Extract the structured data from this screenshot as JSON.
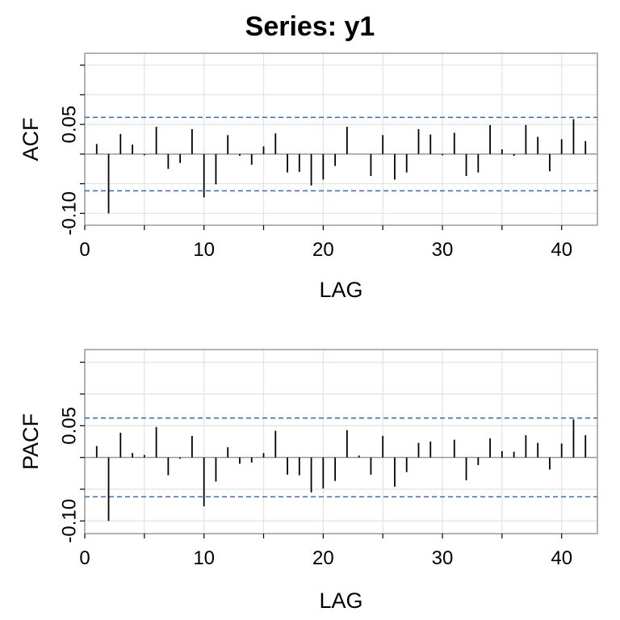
{
  "title": "Series:  y1",
  "chart_data": [
    {
      "type": "bar",
      "xlabel": "LAG",
      "ylabel": "ACF",
      "xlim": [
        0,
        43
      ],
      "ylim": [
        -0.12,
        0.17
      ],
      "x_ticks": [
        0,
        10,
        20,
        30,
        40
      ],
      "x_tick_labels": [
        "0",
        "10",
        "20",
        "30",
        "40"
      ],
      "y_ticks": [
        -0.1,
        0.05
      ],
      "y_tick_labels": [
        "-0.10",
        "0.05"
      ],
      "y_minor_ticks": [
        -0.1,
        -0.05,
        0,
        0.05,
        0.1,
        0.15
      ],
      "confidence_bounds": [
        0.062,
        -0.062
      ],
      "grid": true,
      "lags": [
        1,
        2,
        3,
        4,
        5,
        6,
        7,
        8,
        9,
        10,
        11,
        12,
        13,
        14,
        15,
        16,
        17,
        18,
        19,
        20,
        21,
        22,
        23,
        24,
        25,
        26,
        27,
        28,
        29,
        30,
        31,
        32,
        33,
        34,
        35,
        36,
        37,
        38,
        39,
        40,
        41,
        42
      ],
      "values": [
        0.017,
        -0.1,
        0.034,
        0.016,
        -0.002,
        0.046,
        -0.025,
        -0.015,
        0.042,
        -0.073,
        -0.051,
        0.032,
        -0.003,
        -0.018,
        0.013,
        0.035,
        -0.031,
        -0.03,
        -0.053,
        -0.043,
        -0.02,
        0.046,
        0,
        -0.037,
        0.032,
        -0.043,
        -0.031,
        0.042,
        0.033,
        -0.002,
        0.036,
        -0.037,
        -0.031,
        0.049,
        0.008,
        -0.003,
        0.049,
        0.029,
        -0.029,
        0.025,
        0.059,
        0.022
      ]
    },
    {
      "type": "bar",
      "xlabel": "LAG",
      "ylabel": "PACF",
      "xlim": [
        0,
        43
      ],
      "ylim": [
        -0.12,
        0.17
      ],
      "x_ticks": [
        0,
        10,
        20,
        30,
        40
      ],
      "x_tick_labels": [
        "0",
        "10",
        "20",
        "30",
        "40"
      ],
      "y_ticks": [
        -0.1,
        0.05
      ],
      "y_tick_labels": [
        "-0.10",
        "0.05"
      ],
      "y_minor_ticks": [
        -0.1,
        -0.05,
        0,
        0.05,
        0.1,
        0.15
      ],
      "confidence_bounds": [
        0.062,
        -0.062
      ],
      "grid": true,
      "lags": [
        1,
        2,
        3,
        4,
        5,
        6,
        7,
        8,
        9,
        10,
        11,
        12,
        13,
        14,
        15,
        16,
        17,
        18,
        19,
        20,
        21,
        22,
        23,
        24,
        25,
        26,
        27,
        28,
        29,
        30,
        31,
        32,
        33,
        34,
        35,
        36,
        37,
        38,
        39,
        40,
        41,
        42
      ],
      "values": [
        0.018,
        -0.1,
        0.039,
        0.007,
        0.004,
        0.048,
        -0.028,
        -0.002,
        0.034,
        -0.077,
        -0.038,
        0.016,
        -0.01,
        -0.008,
        0.007,
        0.042,
        -0.027,
        -0.028,
        -0.055,
        -0.049,
        -0.037,
        0.043,
        0.003,
        -0.027,
        0.034,
        -0.046,
        -0.023,
        0.023,
        0.025,
        0,
        0.028,
        -0.036,
        -0.012,
        0.03,
        0.01,
        0.009,
        0.035,
        0.023,
        -0.019,
        0.022,
        0.06,
        0.035
      ]
    }
  ],
  "colors": {
    "bars": "#000000",
    "zero_line": "#9a9a9a",
    "confidence_line": "#2f6fb8",
    "grid": "#e2e2e2",
    "frame": "#9a9a9a"
  }
}
